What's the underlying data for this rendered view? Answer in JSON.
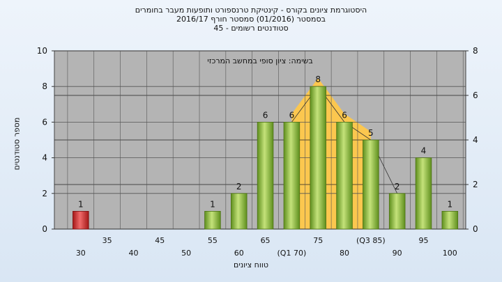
{
  "titles": {
    "line1": "היסטוגרמת ציונים בקורס - קינטיקת טרנספורט ותופעות מעבר בחומרים",
    "line2": "2016/17 בסמסטר (01/2016) סמסטר חורף",
    "line3": "סטודנטים רשומים - 45"
  },
  "chart_data": {
    "type": "bar",
    "ylabel": "מספר סטודנטים",
    "xlabel": "טווח ציונים",
    "annotation": "בשימה: ציון סופי במחשב המרכזי",
    "ylim": [
      0,
      10
    ],
    "y_ticks": [
      "0",
      "2",
      "4",
      "6",
      "8",
      "10"
    ],
    "y2lim": [
      0,
      8
    ],
    "y2_ticks": [
      "0",
      "2",
      "4",
      "6",
      "8"
    ],
    "grid": true,
    "categories": [
      "30",
      "35",
      "40",
      "45",
      "50",
      "55",
      "60",
      "65",
      "70",
      "75",
      "80",
      "85",
      "90",
      "95",
      "100"
    ],
    "x_tick_labels": [
      "30",
      "35",
      "40",
      "45",
      "50",
      "55",
      "60",
      "65",
      "(Q1 70)",
      "75",
      "80",
      "(Q3 85)",
      "90",
      "95",
      "100"
    ],
    "values": [
      1,
      0,
      0,
      0,
      0,
      1,
      2,
      6,
      6,
      8,
      6,
      5,
      2,
      4,
      1
    ],
    "quartile_band": {
      "from": "70",
      "to": "85"
    },
    "colors": {
      "fail_bar": "#d93030",
      "pass_bar": "#8cbf3c",
      "band": "#ffc84a",
      "plot_bg": "#b4b4b4",
      "grid": "#555555"
    }
  }
}
